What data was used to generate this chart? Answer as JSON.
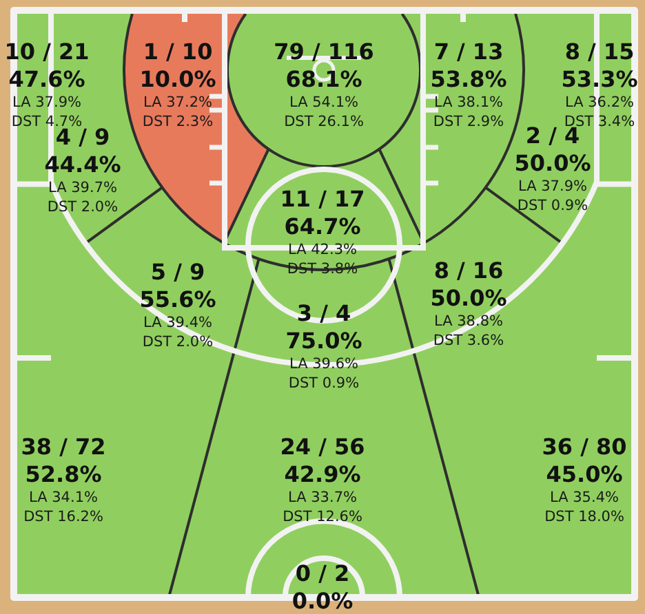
{
  "chart_data": {
    "type": "other",
    "categories": [
      null,
      null,
      null,
      null,
      null,
      null,
      null,
      null,
      null,
      null,
      null,
      null,
      null,
      null,
      null
    ],
    "values": [
      47.6,
      10.0,
      68.1,
      53.8,
      53.3,
      44.4,
      50.0,
      64.7,
      55.6,
      50.0,
      75.0,
      52.8,
      42.9,
      45.0,
      0.0
    ],
    "value_labels": [
      "47.6%",
      "10.0%",
      "68.1%",
      "53.8%",
      "53.3%",
      "44.4%",
      "50.0%",
      "64.7%",
      "55.6%",
      "50.0%",
      "75.0%",
      "52.8%",
      "42.9%",
      "45.0%",
      "0.0%"
    ],
    "colors": [
      "#90cf5f",
      "#e87a5c",
      "#90cf5f",
      "#90cf5f",
      "#90cf5f",
      "#90cf5f",
      "#90cf5f",
      "#90cf5f",
      "#90cf5f",
      "#90cf5f",
      "#90cf5f",
      "#90cf5f",
      "#90cf5f",
      "#90cf5f",
      "#90cf5f"
    ],
    "annotations": [
      "10 / 21",
      "LA 37.9%",
      "DST 4.7%",
      "1 / 10",
      "LA 37.2%",
      "DST 2.3%",
      "79 / 116",
      "LA 54.1%",
      "DST 26.1%",
      "7 / 13",
      "LA 38.1%",
      "DST 2.9%",
      "8 / 15",
      "LA 36.2%",
      "DST 3.4%",
      "4 / 9",
      "LA 39.7%",
      "DST 2.0%",
      "2 / 4",
      "LA 37.9%",
      "DST 0.9%",
      "11 / 17",
      "LA 42.3%",
      "DST 3.8%",
      "5 / 9",
      "LA 39.4%",
      "DST 2.0%",
      "8 / 16",
      "LA 38.8%",
      "DST 3.6%",
      "3 / 4",
      "LA 39.6%",
      "DST 0.9%",
      "38 / 72",
      "LA 34.1%",
      "DST 16.2%",
      "24 / 56",
      "LA 33.7%",
      "DST 12.6%",
      "36 / 80",
      "LA 35.4%",
      "DST 18.0%",
      "0 / 2"
    ]
  }
}
